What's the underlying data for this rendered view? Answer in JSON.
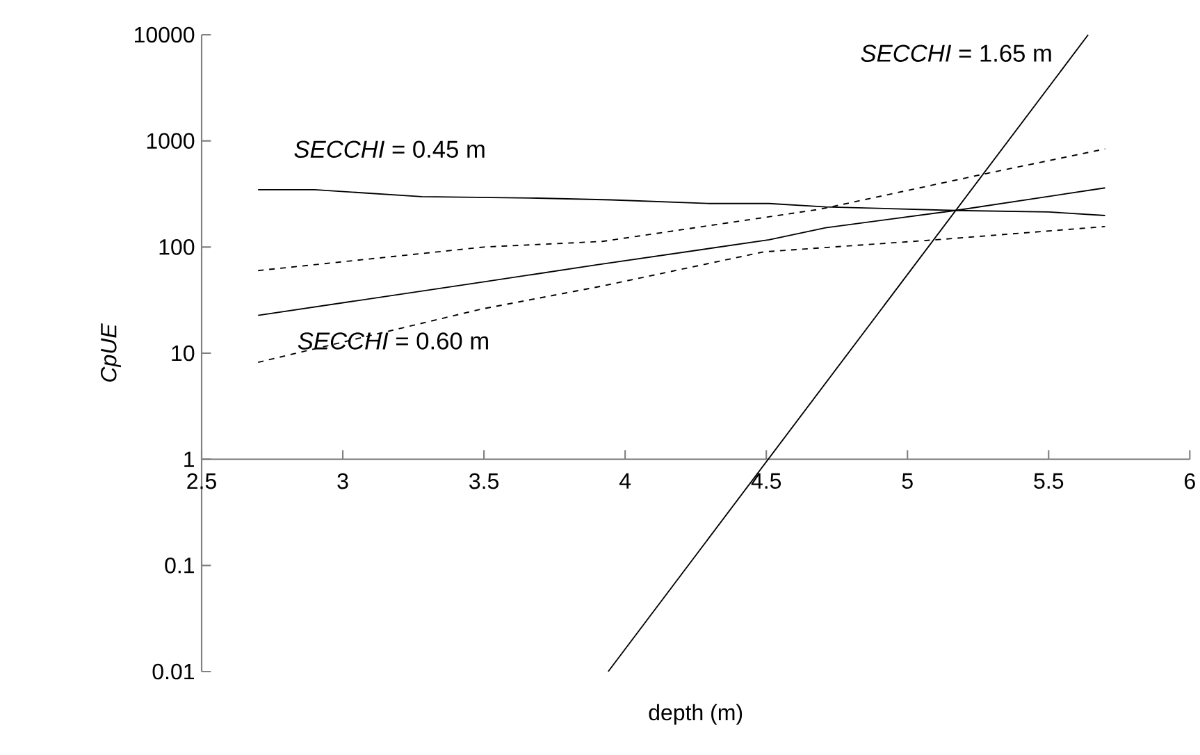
{
  "chart_data": {
    "type": "line",
    "log": "y",
    "xlabel": "depth (m)",
    "ylabel": "CpUE",
    "xlim": [
      2.5,
      6
    ],
    "xticks": [
      2.5,
      3,
      3.5,
      4,
      4.5,
      5,
      5.5,
      6
    ],
    "ylim": [
      0.01,
      10000
    ],
    "yticks": [
      0.01,
      0.1,
      1,
      10,
      100,
      1000,
      10000
    ],
    "grid": false,
    "legend": false,
    "marker": "none",
    "line_style": "solid",
    "series": [
      {
        "name": "*SECCHI* = 0.45 m",
        "color": "#000000",
        "x": [
          2.7,
          2.9,
          3.28,
          3.69,
          3.95,
          4.3,
          4.51,
          4.71,
          5.17,
          5.5,
          5.7
        ],
        "values": [
          347,
          347,
          298,
          289,
          278,
          257,
          257,
          239,
          221,
          214,
          198
        ]
      },
      {
        "name": "*SECCHI* = 0.60 m",
        "color": "#000000",
        "x": [
          2.7,
          3.5,
          3.9,
          4.51,
          4.71,
          5.17,
          5.7
        ],
        "values": [
          22.7,
          47,
          68,
          117,
          152,
          221,
          361
        ]
      },
      {
        "color": "#000000",
        "line_style": "dashed",
        "x": [
          2.7,
          3.5,
          3.92,
          4.69,
          5.28,
          5.7
        ],
        "values": [
          60,
          100,
          113,
          227,
          493,
          840
        ]
      },
      {
        "color": "#000000",
        "line_style": "dashed",
        "x": [
          2.7,
          3.49,
          3.92,
          4.49,
          5.1,
          5.7
        ],
        "values": [
          8.2,
          26,
          43,
          90,
          117,
          156
        ]
      },
      {
        "name": "*SECCHI* = 1.65 m",
        "color": "#000000",
        "x": [
          3.94,
          5.64
        ],
        "values": [
          0.01,
          10000
        ]
      }
    ]
  }
}
